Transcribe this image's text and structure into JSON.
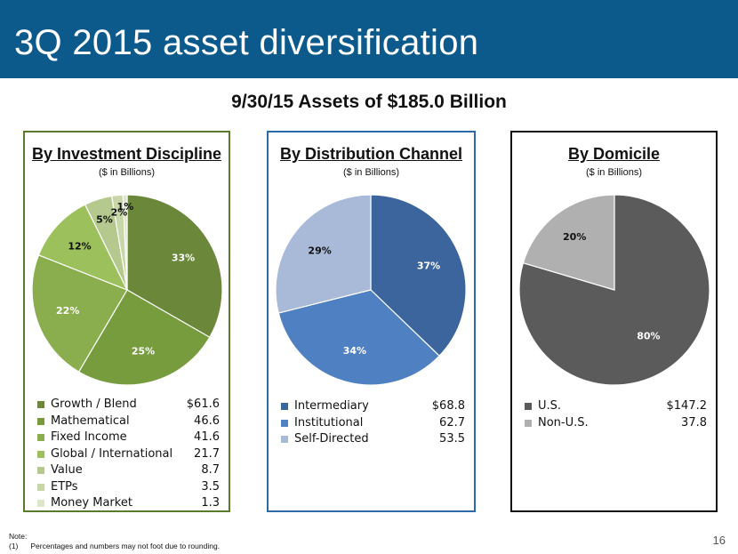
{
  "slide": {
    "title": "3Q 2015 asset diversification",
    "subtitle": "9/30/15 Assets of $185.0 Billion",
    "note_label": "Note:",
    "note_marker": "(1)",
    "note_text": "Percentages and numbers may not foot due to rounding.",
    "page_number": "16"
  },
  "chart_data": [
    {
      "type": "pie",
      "title": "By Investment Discipline",
      "subtitle": "($ in Billions)",
      "labels": [
        "Growth / Blend",
        "Mathematical",
        "Fixed Income",
        "Global / International",
        "Value",
        "ETPs",
        "Money Market"
      ],
      "values": [
        61.6,
        46.6,
        41.6,
        21.7,
        8.7,
        3.5,
        1.3
      ],
      "value_labels": [
        "$61.6",
        "46.6",
        "41.6",
        "21.7",
        "8.7",
        "3.5",
        "1.3"
      ],
      "percent_labels": [
        "33%",
        "25%",
        "22%",
        "12%",
        "5%",
        "2%",
        "1%"
      ],
      "colors": [
        "#6b873a",
        "#769c3e",
        "#8aad4e",
        "#9cc05c",
        "#b5c98e",
        "#c8d7a8",
        "#dde6c9"
      ],
      "label_colors": [
        "#ffffff",
        "#ffffff",
        "#ffffff",
        "#111111",
        "#111111",
        "#111111",
        "#111111"
      ]
    },
    {
      "type": "pie",
      "title": "By Distribution Channel",
      "subtitle": "($ in Billions)",
      "labels": [
        "Intermediary",
        "Institutional",
        "Self-Directed"
      ],
      "values": [
        68.8,
        62.7,
        53.5
      ],
      "value_labels": [
        "$68.8",
        "62.7",
        "53.5"
      ],
      "percent_labels": [
        "37%",
        "34%",
        "29%"
      ],
      "colors": [
        "#3c659e",
        "#4f80c2",
        "#a9b9d8"
      ],
      "label_colors": [
        "#ffffff",
        "#ffffff",
        "#111111"
      ]
    },
    {
      "type": "pie",
      "title": "By Domicile",
      "subtitle": "($ in Billions)",
      "labels": [
        "U.S.",
        "Non-U.S."
      ],
      "values": [
        147.2,
        37.8
      ],
      "value_labels": [
        "$147.2",
        "37.8"
      ],
      "percent_labels": [
        "80%",
        "20%"
      ],
      "colors": [
        "#5b5b5b",
        "#b0b0b0"
      ],
      "label_colors": [
        "#ffffff",
        "#111111"
      ]
    }
  ]
}
